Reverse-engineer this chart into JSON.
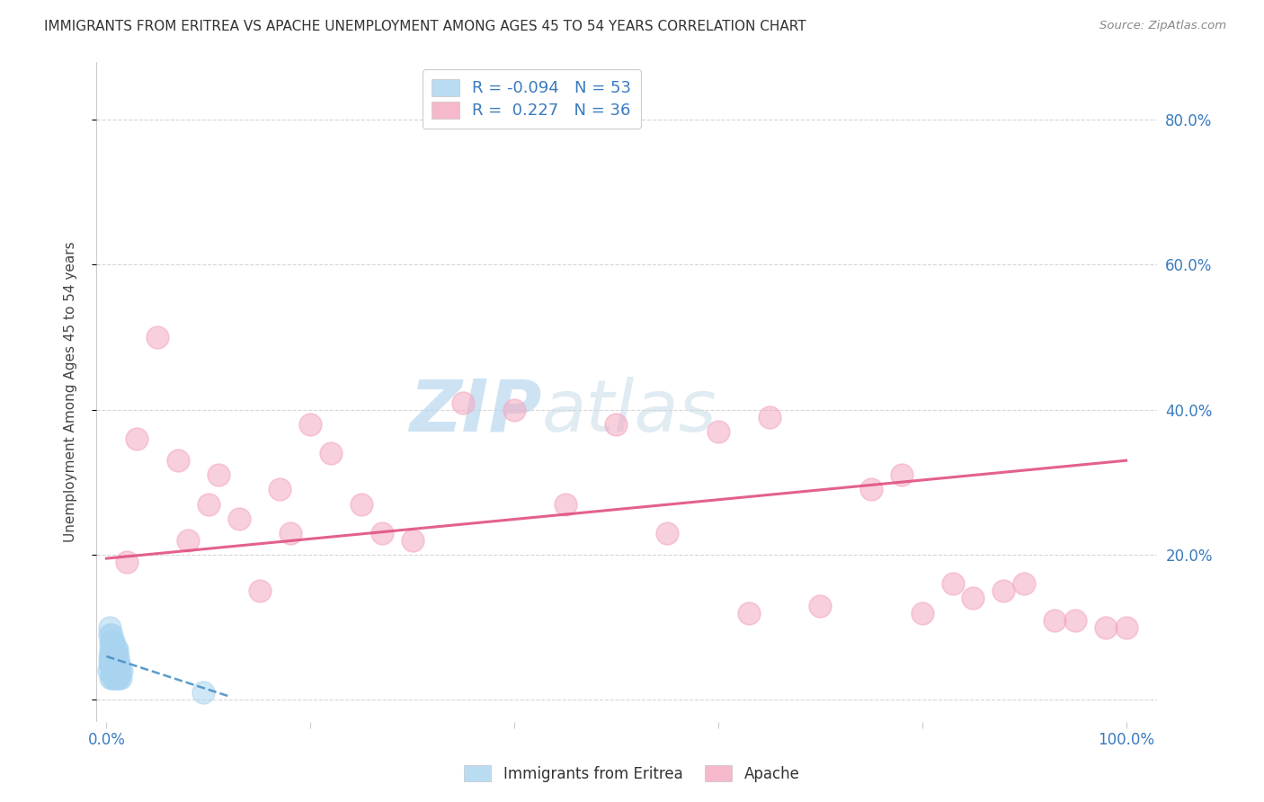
{
  "title": "IMMIGRANTS FROM ERITREA VS APACHE UNEMPLOYMENT AMONG AGES 45 TO 54 YEARS CORRELATION CHART",
  "source": "Source: ZipAtlas.com",
  "r_blue": -0.094,
  "n_blue": 53,
  "r_pink": 0.227,
  "n_pink": 36,
  "blue_color": "#a8d4f0",
  "pink_color": "#f4a8c0",
  "blue_line_color": "#4a90c4",
  "pink_line_color": "#e05080",
  "blue_points_x": [
    0.2,
    0.3,
    0.3,
    0.4,
    0.4,
    0.4,
    0.5,
    0.5,
    0.5,
    0.6,
    0.6,
    0.6,
    0.7,
    0.7,
    0.7,
    0.8,
    0.8,
    0.8,
    0.9,
    0.9,
    1.0,
    1.0,
    1.0,
    1.0,
    1.1,
    1.1,
    1.2,
    1.2,
    1.3,
    1.4,
    1.5,
    0.3,
    0.4,
    0.5,
    0.6,
    0.7,
    0.8,
    0.9,
    1.0,
    1.1,
    1.2,
    0.3,
    0.5,
    0.7,
    0.9,
    1.1,
    0.4,
    0.6,
    0.8,
    1.0,
    0.5,
    0.7,
    9.5
  ],
  "blue_points_y": [
    4,
    5,
    6,
    3,
    5,
    7,
    4,
    6,
    8,
    3,
    5,
    7,
    4,
    6,
    8,
    3,
    5,
    7,
    4,
    6,
    3,
    4,
    5,
    7,
    4,
    6,
    3,
    5,
    4,
    3,
    4,
    9,
    8,
    7,
    6,
    5,
    4,
    3,
    4,
    5,
    4,
    10,
    9,
    8,
    7,
    5,
    6,
    5,
    4,
    3,
    5,
    4,
    1
  ],
  "pink_points_x": [
    2,
    3,
    5,
    7,
    8,
    10,
    11,
    13,
    15,
    17,
    18,
    20,
    22,
    25,
    27,
    30,
    35,
    40,
    45,
    50,
    55,
    60,
    63,
    65,
    70,
    75,
    78,
    80,
    83,
    85,
    88,
    90,
    93,
    95,
    98,
    100
  ],
  "pink_points_y": [
    19,
    36,
    50,
    33,
    22,
    27,
    31,
    25,
    15,
    29,
    23,
    38,
    34,
    27,
    23,
    22,
    41,
    40,
    27,
    38,
    23,
    37,
    12,
    39,
    13,
    29,
    31,
    12,
    16,
    14,
    15,
    16,
    11,
    11,
    10,
    10
  ],
  "xlim": [
    -1,
    103
  ],
  "ylim": [
    -3,
    88
  ],
  "xticks": [
    0,
    20,
    40,
    60,
    80,
    100
  ],
  "yticks": [
    0,
    20,
    40,
    60,
    80
  ],
  "right_ytick_labels": [
    "20.0%",
    "40.0%",
    "60.0%",
    "80.0%"
  ],
  "right_ytick_vals": [
    20,
    40,
    60,
    80
  ],
  "xlabel_show": [
    "0.0%",
    "100.0%"
  ],
  "xlabel_show_vals": [
    0,
    100
  ],
  "ylabel": "Unemployment Among Ages 45 to 54 years",
  "blue_trend_x": [
    0,
    12
  ],
  "blue_trend_y_start": 6.0,
  "blue_trend_y_end": 0.5,
  "pink_trend_x": [
    0,
    100
  ],
  "pink_trend_y_start": 19.5,
  "pink_trend_y_end": 33.0
}
